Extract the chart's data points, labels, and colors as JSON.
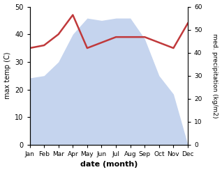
{
  "months": [
    "Jan",
    "Feb",
    "Mar",
    "Apr",
    "May",
    "Jun",
    "Jul",
    "Aug",
    "Sep",
    "Oct",
    "Nov",
    "Dec"
  ],
  "temperature": [
    35,
    36,
    40,
    47,
    35,
    37,
    39,
    39,
    39,
    37,
    35,
    44
  ],
  "precipitation": [
    29,
    30,
    36,
    48,
    55,
    54,
    55,
    55,
    46,
    30,
    22,
    0
  ],
  "temp_color": "#c0393b",
  "precip_color": "#c5d4ee",
  "temp_ylim": [
    0,
    50
  ],
  "precip_ylim": [
    0,
    60
  ],
  "xlabel": "date (month)",
  "ylabel_left": "max temp (C)",
  "ylabel_right": "med. precipitation (kg/m2)",
  "bg_color": "#ffffff"
}
